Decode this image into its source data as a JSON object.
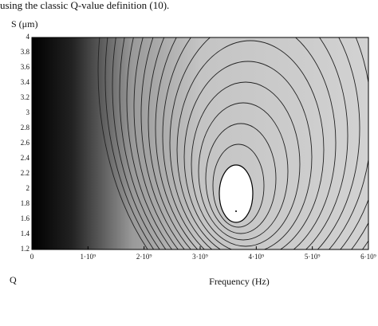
{
  "header": {
    "text": "using the classic Q-value definition (10)."
  },
  "chart_data": {
    "type": "contour",
    "y_label": "S (μm)",
    "x_label": "Frequency (Hz)",
    "corner_label": "Q",
    "xlim": [
      0,
      6000000000
    ],
    "ylim": [
      1.2,
      4
    ],
    "xticks": [
      0,
      {
        "value": 1000000000,
        "label": "1·10⁹"
      },
      {
        "value": 2000000000,
        "label": "2·10⁹"
      },
      {
        "value": 3000000000,
        "label": "3·10⁹"
      },
      {
        "value": 4000000000,
        "label": "4·10⁹"
      },
      {
        "value": 5000000000,
        "label": "5·10⁹"
      },
      {
        "value": 6000000000,
        "label": "6·10⁹"
      }
    ],
    "yticks": [
      1.2,
      1.4,
      1.6,
      1.8,
      2,
      2.2,
      2.4,
      2.6,
      2.8,
      3,
      3.2,
      3.4,
      3.6,
      3.8,
      4
    ]
  }
}
